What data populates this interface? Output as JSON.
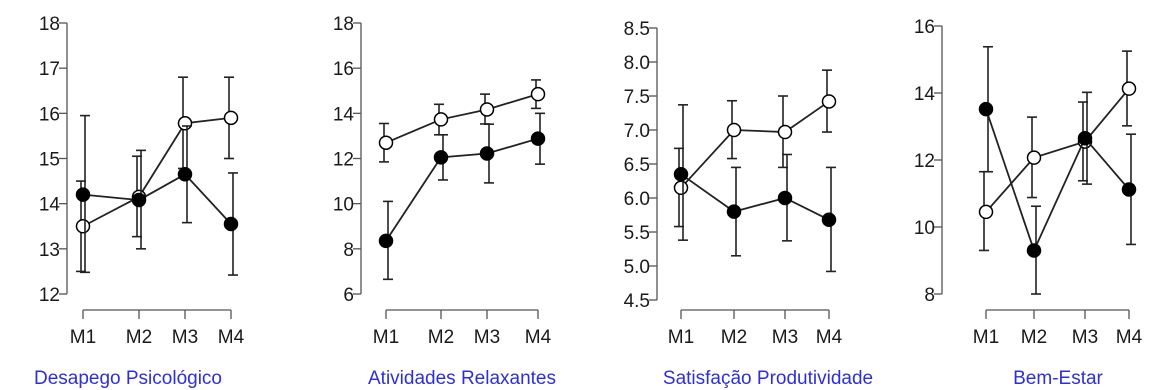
{
  "chart_data": [
    {
      "type": "line",
      "title": "Desapego Psicológico",
      "categories": [
        "M1",
        "M2",
        "M3",
        "M4"
      ],
      "ylim": [
        12,
        18
      ],
      "yticks": [
        12,
        13,
        14,
        15,
        16,
        17,
        18
      ],
      "series": [
        {
          "marker": "open",
          "values": [
            13.5,
            14.15,
            15.78,
            15.9
          ],
          "err_low": [
            12.5,
            13.27,
            14.78,
            15.0
          ],
          "err_high": [
            14.5,
            15.05,
            16.8,
            16.8
          ]
        },
        {
          "marker": "filled",
          "values": [
            14.2,
            14.08,
            14.65,
            13.55
          ],
          "err_low": [
            12.48,
            13.0,
            13.58,
            12.42
          ],
          "err_high": [
            15.95,
            15.18,
            15.72,
            14.68
          ]
        }
      ]
    },
    {
      "type": "line",
      "title": "Atividades Relaxantes",
      "categories": [
        "M1",
        "M2",
        "M3",
        "M4"
      ],
      "ylim": [
        6,
        18
      ],
      "yticks": [
        6,
        8,
        10,
        12,
        14,
        16,
        18
      ],
      "series": [
        {
          "marker": "open",
          "values": [
            12.7,
            13.73,
            14.17,
            14.85
          ],
          "err_low": [
            11.85,
            13.05,
            13.53,
            14.22
          ],
          "err_high": [
            13.55,
            14.4,
            14.85,
            15.48
          ]
        },
        {
          "marker": "filled",
          "values": [
            8.35,
            12.05,
            12.22,
            12.88
          ],
          "err_low": [
            6.65,
            11.05,
            10.92,
            11.75
          ],
          "err_high": [
            10.1,
            13.05,
            13.52,
            14.0
          ]
        }
      ]
    },
    {
      "type": "line",
      "title": "Satisfação Produtividade",
      "categories": [
        "M1",
        "M2",
        "M3",
        "M4"
      ],
      "ylim": [
        4.5,
        8.5
      ],
      "yticks": [
        4.5,
        5.0,
        5.5,
        6.0,
        6.5,
        7.0,
        7.5,
        8.0,
        8.5
      ],
      "series": [
        {
          "marker": "open",
          "values": [
            6.15,
            7.0,
            6.97,
            7.42
          ],
          "err_low": [
            5.58,
            6.58,
            6.45,
            6.97
          ],
          "err_high": [
            6.73,
            7.43,
            7.5,
            7.88
          ]
        },
        {
          "marker": "filled",
          "values": [
            6.35,
            5.8,
            6.0,
            5.68
          ],
          "err_low": [
            5.38,
            5.15,
            5.37,
            4.92
          ],
          "err_high": [
            7.37,
            6.45,
            6.64,
            6.45
          ]
        }
      ]
    },
    {
      "type": "line",
      "title": "Bem-Estar",
      "categories": [
        "M1",
        "M2",
        "M3",
        "M4"
      ],
      "ylim": [
        8,
        16
      ],
      "yticks": [
        8,
        10,
        12,
        14,
        16
      ],
      "series": [
        {
          "marker": "open",
          "values": [
            10.45,
            12.07,
            12.55,
            14.13
          ],
          "err_low": [
            9.3,
            10.88,
            11.38,
            13.02
          ],
          "err_high": [
            11.65,
            13.28,
            13.73,
            15.25
          ]
        },
        {
          "marker": "filled",
          "values": [
            13.52,
            9.3,
            12.65,
            11.12
          ],
          "err_low": [
            11.65,
            8.0,
            11.28,
            9.48
          ],
          "err_high": [
            15.38,
            10.62,
            14.02,
            12.77
          ]
        }
      ]
    }
  ]
}
